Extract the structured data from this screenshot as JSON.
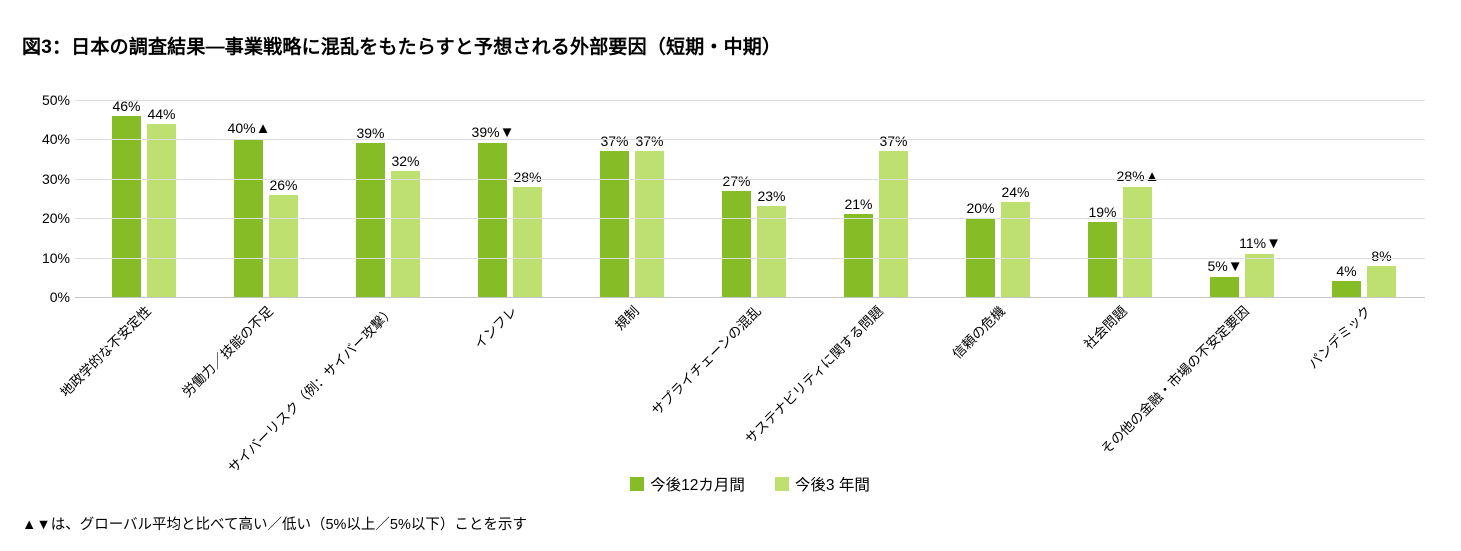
{
  "page": {
    "title": "図3：日本の調査結果—事業戦略に混乱をもたらすと予想される外部要因（短期・中期）",
    "footnote": "▲▼は、グローバル平均と比べて高い／低い（5%以上／5%以下）ことを示す"
  },
  "chart_data": {
    "type": "bar",
    "title": "図3：日本の調査結果—事業戦略に混乱をもたらすと予想される外部要因（短期・中期）",
    "categories": [
      "地政学的な不安定性",
      "労働力／技能の不足",
      "サイバーリスク（例：サイバー攻撃）",
      "インフレ",
      "規制",
      "サプライチェーンの混乱",
      "サステナビリティに関する問題",
      "信頼の危機",
      "社会問題",
      "その他の金融・市場の不安定要因",
      "パンデミック"
    ],
    "series": [
      {
        "name": "今後12カ月間",
        "color": "#86bc25",
        "values": [
          46,
          40,
          39,
          39,
          37,
          27,
          21,
          20,
          19,
          5,
          4
        ],
        "markers": [
          null,
          "up",
          null,
          "down",
          null,
          null,
          null,
          null,
          null,
          "down",
          null
        ]
      },
      {
        "name": "今後3 年間",
        "color": "#bee071",
        "values": [
          44,
          26,
          32,
          28,
          37,
          23,
          37,
          24,
          28,
          11,
          8
        ],
        "markers": [
          null,
          null,
          null,
          null,
          null,
          null,
          null,
          null,
          "up",
          "down",
          null
        ]
      }
    ],
    "ylim": [
      0,
      50
    ],
    "ytick_step": 10,
    "ytick_suffix": "%",
    "value_suffix": "%",
    "marker_glyphs": {
      "up": "▲",
      "down": "▼"
    },
    "grid": true,
    "legend_position": "bottom",
    "footnote": "▲▼は、グローバル平均と比べて高い／低い（5%以上／5%以下）ことを示す"
  }
}
